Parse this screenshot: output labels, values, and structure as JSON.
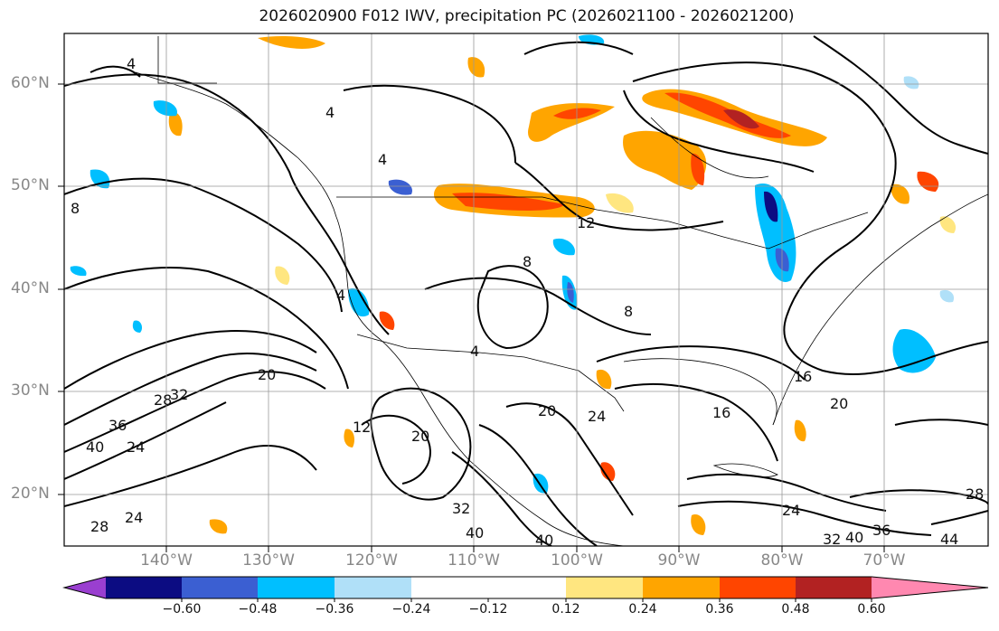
{
  "title": "2026020900 F012 IWV, precipitation PC (2026021100 - 2026021200)",
  "lat_labels": [
    "60°N",
    "50°N",
    "40°N",
    "30°N",
    "20°N"
  ],
  "lon_labels": [
    "140°W",
    "130°W",
    "120°W",
    "110°W",
    "100°W",
    "90°W",
    "80°W",
    "70°W"
  ],
  "contour_labels": [
    "4",
    "4",
    "4",
    "8",
    "12",
    "8",
    "4",
    "4",
    "8",
    "20",
    "12",
    "20",
    "20",
    "24",
    "24",
    "16",
    "16",
    "20",
    "24",
    "28",
    "32",
    "36",
    "40",
    "24",
    "28",
    "32",
    "40",
    "40",
    "40",
    "36",
    "32",
    "28",
    "44"
  ],
  "colorbar": {
    "ticks": [
      "−0.60",
      "−0.48",
      "−0.36",
      "−0.24",
      "−0.12",
      "0.12",
      "0.24",
      "0.36",
      "0.48",
      "0.60"
    ],
    "colors": [
      "#9a3fd0",
      "#0c0c82",
      "#3b5fd2",
      "#00bfff",
      "#b0e0f8",
      "#ffffff",
      "#ffe680",
      "#ffa500",
      "#ff4500",
      "#b22222",
      "#ff88b0"
    ]
  },
  "colors": {
    "contour": "#000000",
    "grid": "#999999",
    "coast": "#000000"
  }
}
